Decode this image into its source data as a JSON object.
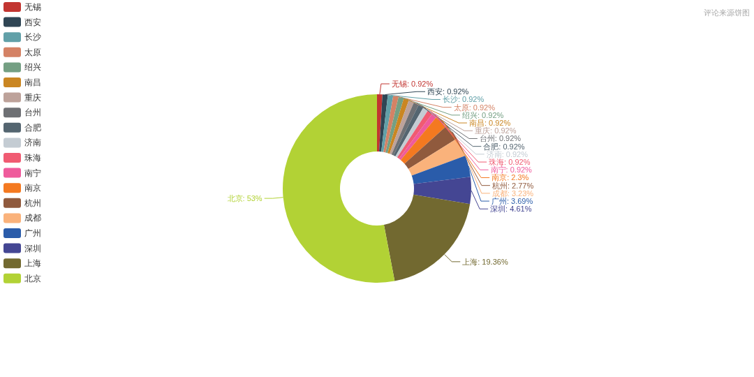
{
  "chart_data": {
    "type": "donut",
    "title": "评论来源饼图",
    "categories": [
      "无锡",
      "西安",
      "长沙",
      "太原",
      "绍兴",
      "南昌",
      "重庆",
      "台州",
      "合肥",
      "济南",
      "珠海",
      "南宁",
      "南京",
      "杭州",
      "成都",
      "广州",
      "深圳",
      "上海",
      "北京"
    ],
    "values": [
      0.92,
      0.92,
      0.92,
      0.92,
      0.92,
      0.92,
      0.92,
      0.92,
      0.92,
      0.92,
      0.92,
      0.92,
      2.3,
      2.77,
      3.23,
      3.69,
      4.61,
      19.36,
      53
    ],
    "value_labels": [
      "无锡: 0.92%",
      "西安: 0.92%",
      "长沙: 0.92%",
      "太原: 0.92%",
      "绍兴: 0.92%",
      "南昌: 0.92%",
      "重庆: 0.92%",
      "台州: 0.92%",
      "合肥: 0.92%",
      "济南: 0.92%",
      "珠海: 0.92%",
      "南宁: 0.92%",
      "南京: 2.3%",
      "杭州: 2.77%",
      "成都: 3.23%",
      "广州: 3.69%",
      "深圳: 4.61%",
      "上海: 19.36%",
      "北京: 53%"
    ],
    "colors": [
      "#c23531",
      "#2f4554",
      "#61a0a8",
      "#d48265",
      "#749f83",
      "#ca8622",
      "#bda29a",
      "#6e7074",
      "#546570",
      "#c4ccd3",
      "#f05b72",
      "#ef5b9c",
      "#f47920",
      "#905a3d",
      "#fab27b",
      "#2a5caa",
      "#444693",
      "#726930",
      "#b2d235"
    ],
    "legend": "top left"
  }
}
